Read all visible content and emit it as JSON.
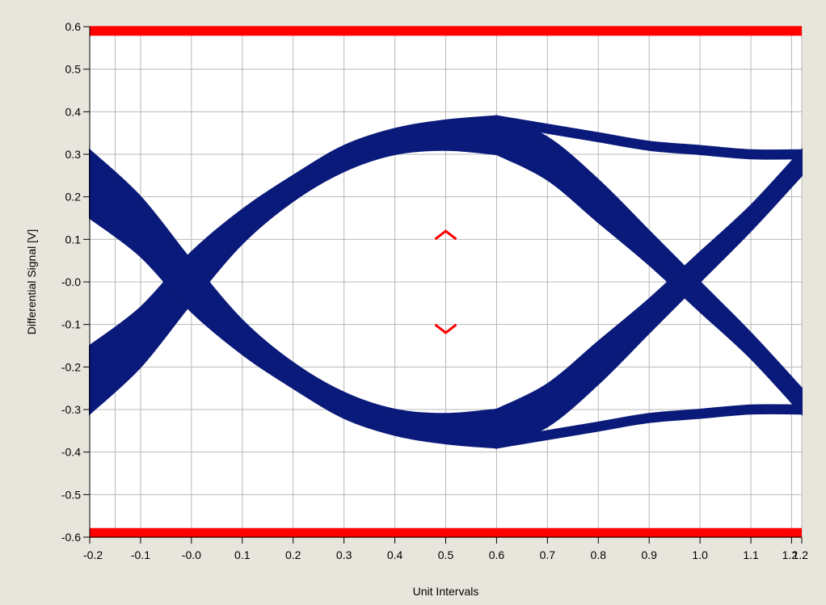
{
  "chart_data": {
    "type": "line",
    "title": "",
    "xlabel": "Unit Intervals",
    "ylabel": "Differential Signal [V]",
    "xlim": [
      -0.2,
      1.2
    ],
    "ylim": [
      -0.6,
      0.6
    ],
    "x_ticks": [
      -0.2,
      -0.1,
      0.0,
      0.1,
      0.2,
      0.3,
      0.4,
      0.5,
      0.6,
      0.7,
      0.8,
      0.9,
      1.0,
      1.1,
      1.2
    ],
    "x_tick_labels": [
      "-0.2",
      "-0.1",
      "-0.0",
      "0.1",
      "0.2",
      "0.3",
      "0.4",
      "0.5",
      "0.6",
      "0.7",
      "0.8",
      "0.9",
      "1.0",
      "1.1",
      "1.2"
    ],
    "extra_x_tick": {
      "value": 1.18,
      "label": "1.2"
    },
    "y_ticks": [
      0.6,
      0.5,
      0.4,
      0.3,
      0.2,
      0.1,
      0.0,
      -0.1,
      -0.2,
      -0.3,
      -0.4,
      -0.5,
      -0.6
    ],
    "y_tick_labels": [
      "0.6",
      "0.5",
      "0.4",
      "0.3",
      "0.2",
      "0.1",
      "-0.0",
      "-0.1",
      "-0.2",
      "-0.3",
      "-0.4",
      "-0.5",
      "-0.6"
    ],
    "grid": true,
    "colors": {
      "eye": "#0a1a7a",
      "mask": "#ff0000",
      "grid": "#b8b8b8",
      "background": "#ffffff",
      "frame": "#e8e6dc"
    },
    "eye_traces": {
      "upper_rise": {
        "x": [
          -0.2,
          -0.1,
          0.0,
          0.1,
          0.2,
          0.3,
          0.4,
          0.5,
          0.6
        ],
        "y_low": [
          -0.31,
          -0.2,
          -0.05,
          0.09,
          0.19,
          0.26,
          0.3,
          0.31,
          0.3
        ],
        "y_high": [
          -0.15,
          -0.06,
          0.07,
          0.17,
          0.25,
          0.32,
          0.36,
          0.38,
          0.39
        ]
      },
      "lower_fall": {
        "x": [
          -0.2,
          -0.1,
          0.0,
          0.1,
          0.2,
          0.3,
          0.4,
          0.5,
          0.6
        ],
        "y_high": [
          0.31,
          0.2,
          0.05,
          -0.09,
          -0.19,
          -0.26,
          -0.3,
          -0.31,
          -0.3
        ],
        "y_low": [
          0.15,
          0.06,
          -0.07,
          -0.17,
          -0.25,
          -0.32,
          -0.36,
          -0.38,
          -0.39
        ]
      },
      "upper_fall": {
        "x": [
          0.6,
          0.7,
          0.8,
          0.9,
          1.0,
          1.1,
          1.2
        ],
        "y_high": [
          0.39,
          0.34,
          0.24,
          0.12,
          0.0,
          -0.12,
          -0.25
        ],
        "y_low": [
          0.3,
          0.24,
          0.14,
          0.04,
          -0.07,
          -0.18,
          -0.31
        ]
      },
      "lower_rise": {
        "x": [
          0.6,
          0.7,
          0.8,
          0.9,
          1.0,
          1.1,
          1.2
        ],
        "y_low": [
          -0.39,
          -0.34,
          -0.24,
          -0.12,
          0.0,
          0.12,
          0.25
        ],
        "y_high": [
          -0.3,
          -0.24,
          -0.14,
          -0.04,
          0.07,
          0.18,
          0.31
        ]
      },
      "upper_flat": {
        "x": [
          0.6,
          0.7,
          0.8,
          0.9,
          1.0,
          1.1,
          1.2
        ],
        "y_high": [
          0.39,
          0.37,
          0.35,
          0.33,
          0.32,
          0.31,
          0.31
        ],
        "y_low": [
          0.37,
          0.35,
          0.33,
          0.31,
          0.3,
          0.29,
          0.29
        ]
      },
      "lower_flat": {
        "x": [
          0.6,
          0.7,
          0.8,
          0.9,
          1.0,
          1.1,
          1.2
        ],
        "y_low": [
          -0.39,
          -0.37,
          -0.35,
          -0.33,
          -0.32,
          -0.31,
          -0.31
        ],
        "y_high": [
          -0.37,
          -0.35,
          -0.33,
          -0.31,
          -0.3,
          -0.29,
          -0.29
        ]
      }
    },
    "mask": {
      "top_bar_y": 0.59,
      "bottom_bar_y": -0.59,
      "markers": [
        {
          "x": 0.5,
          "y": 0.11,
          "shape": "caret-up"
        },
        {
          "x": 0.5,
          "y": -0.11,
          "shape": "caret-down"
        }
      ]
    }
  }
}
